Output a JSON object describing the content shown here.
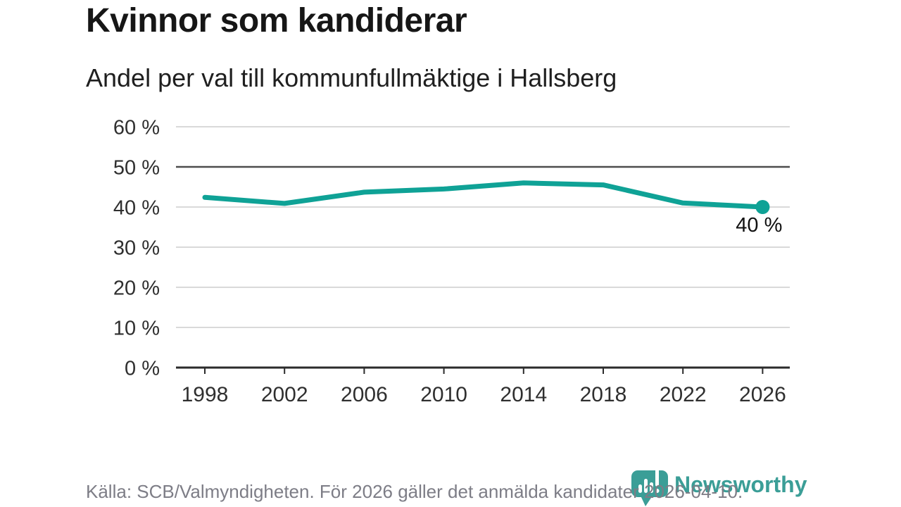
{
  "header": {
    "title": "Kvinnor som kandiderar",
    "subtitle": "Andel per val till kommunfullmäktige i Hallsberg"
  },
  "footer": {
    "source": "Källa: SCB/Valmyndigheten. För 2026 gäller det anmälda kandidater 2026-04-10.",
    "brand": "Newsworthy"
  },
  "colors": {
    "line": "#0fa296",
    "end_dot": "#0fa296",
    "brand_teal": "#3b9e97",
    "grid_light": "#d9d9d9",
    "grid_emphasis": "#4d4d4d",
    "axis": "#2b2b2b",
    "tick_text": "#2f2f2f",
    "annotation_text": "#111111"
  },
  "chart_data": {
    "type": "line",
    "title": "Kvinnor som kandiderar",
    "subtitle": "Andel per val till kommunfullmäktige i Hallsberg",
    "categories": [
      "1998",
      "2002",
      "2006",
      "2010",
      "2014",
      "2018",
      "2022",
      "2026"
    ],
    "values": [
      42.4,
      40.9,
      43.7,
      44.5,
      46.0,
      45.5,
      41.0,
      40.0
    ],
    "xlabel": "",
    "ylabel": "",
    "ylim": [
      0,
      60
    ],
    "ytick_step": 10,
    "ytick_suffix": " %",
    "emphasized_gridline": 50,
    "baseline_gridline": 0,
    "grid": true,
    "legend": false,
    "end_point_label": "40 %"
  }
}
